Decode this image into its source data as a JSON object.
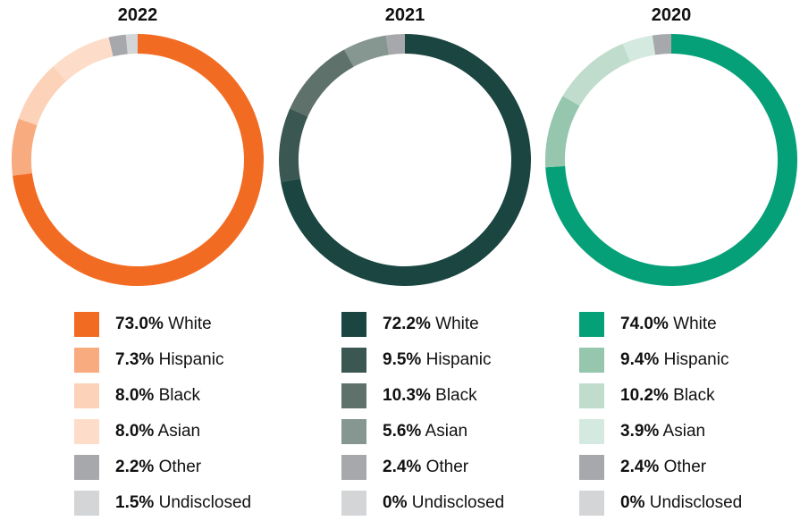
{
  "chart_data": [
    {
      "type": "pie",
      "title": "2022",
      "categories": [
        "White",
        "Hispanic",
        "Black",
        "Asian",
        "Other",
        "Undisclosed"
      ],
      "values": [
        73.0,
        7.3,
        8.0,
        8.0,
        2.2,
        1.5
      ],
      "labels": [
        "73.0%",
        "7.3%",
        "8.0%",
        "8.0%",
        "2.2%",
        "1.5%"
      ],
      "colors": [
        "#f26b22",
        "#f9ab80",
        "#fcd2b8",
        "#fdddc9",
        "#a7a8ab",
        "#d4d5d7"
      ],
      "legend_position": "bottom"
    },
    {
      "type": "pie",
      "title": "2021",
      "categories": [
        "White",
        "Hispanic",
        "Black",
        "Asian",
        "Other",
        "Undisclosed"
      ],
      "values": [
        72.2,
        9.5,
        10.3,
        5.6,
        2.4,
        0
      ],
      "labels": [
        "72.2%",
        "9.5%",
        "10.3%",
        "5.6%",
        "2.4%",
        "0%"
      ],
      "colors": [
        "#1a4540",
        "#3b5752",
        "#5e716b",
        "#869690",
        "#a7a8ab",
        "#d4d5d7"
      ],
      "legend_position": "bottom"
    },
    {
      "type": "pie",
      "title": "2020",
      "categories": [
        "White",
        "Hispanic",
        "Black",
        "Asian",
        "Other",
        "Undisclosed"
      ],
      "values": [
        74.0,
        9.4,
        10.2,
        3.9,
        2.4,
        0
      ],
      "labels": [
        "74.0%",
        "9.4%",
        "10.2%",
        "3.9%",
        "2.4%",
        "0%"
      ],
      "colors": [
        "#05a077",
        "#96c6ae",
        "#bfdccc",
        "#d4e9df",
        "#a7a8ab",
        "#d4d5d7"
      ],
      "legend_position": "bottom"
    }
  ]
}
